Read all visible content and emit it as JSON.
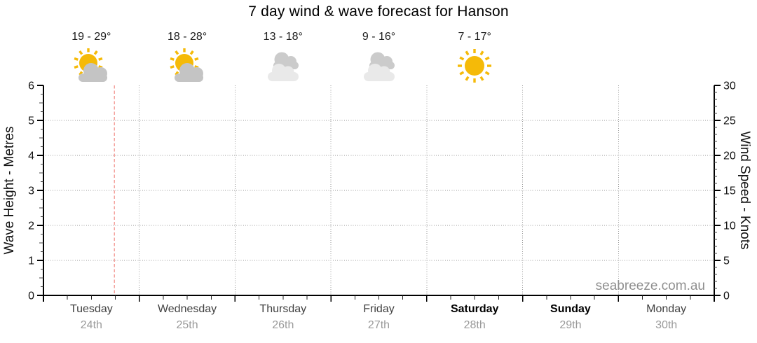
{
  "title": "7 day wind & wave forecast for Hanson",
  "watermark": "seabreeze.com.au",
  "axes": {
    "left": {
      "label": "Wave Height - Metres",
      "ticks": [
        "0",
        "1",
        "2",
        "3",
        "4",
        "5",
        "6"
      ]
    },
    "right": {
      "label": "Wind Speed - Knots",
      "ticks": [
        "0",
        "5",
        "10",
        "15",
        "20",
        "25",
        "30"
      ]
    }
  },
  "days": [
    {
      "name": "Tuesday",
      "date": "24th",
      "temp": "19 - 29°",
      "icon": "sun-cloud",
      "weekend": false
    },
    {
      "name": "Wednesday",
      "date": "25th",
      "temp": "18 - 28°",
      "icon": "sun-cloud",
      "weekend": false
    },
    {
      "name": "Thursday",
      "date": "26th",
      "temp": "13 - 18°",
      "icon": "clouds",
      "weekend": false
    },
    {
      "name": "Friday",
      "date": "27th",
      "temp": "9 - 16°",
      "icon": "clouds",
      "weekend": false
    },
    {
      "name": "Saturday",
      "date": "28th",
      "temp": "7 - 17°",
      "icon": "sun",
      "weekend": true
    },
    {
      "name": "Sunday",
      "date": "29th",
      "temp": null,
      "icon": null,
      "weekend": true
    },
    {
      "name": "Monday",
      "date": "30th",
      "temp": null,
      "icon": null,
      "weekend": false
    }
  ],
  "colors": {
    "sun": "#f5ba08",
    "cloud_mid": "#c4c4c4",
    "cloud_dark": "#cbcbcb",
    "cloud_light": "#e9e9e9",
    "grid": "#999999",
    "axis": "#000000",
    "now_line": "#f4a29d",
    "temp_label": "#1c1c1c",
    "day_label": "#414141",
    "weekend_label": "#000000",
    "date_label": "#9a9a9a",
    "watermark": "#8f8f8f"
  },
  "chart_data": {
    "type": "line",
    "title": "7 day wind & wave forecast for Hanson",
    "x_categories": [
      "Tuesday 24th",
      "Wednesday 25th",
      "Thursday 26th",
      "Friday 27th",
      "Saturday 28th",
      "Sunday 29th",
      "Monday 30th"
    ],
    "y_left_axis": {
      "label": "Wave Height - Metres",
      "range": [
        0,
        6
      ],
      "major_ticks": [
        0,
        1,
        2,
        3,
        4,
        5,
        6
      ],
      "minor_tick_step": 0.25
    },
    "y_right_axis": {
      "label": "Wind Speed - Knots",
      "range": [
        0,
        30
      ],
      "major_ticks": [
        0,
        5,
        10,
        15,
        20,
        25,
        30
      ],
      "minor_tick_step": 1
    },
    "x_minor_ticks_per_day": 4,
    "series": [],
    "note": "Plot area is empty - no wave or wind series drawn; only gridlines and a current-time marker",
    "now_marker": {
      "day": "Tuesday",
      "fraction_of_day": 0.74
    },
    "grid": true,
    "legend": false,
    "day_annotations": [
      {
        "day": "Tuesday",
        "date": "24th",
        "temp_range": "19 - 29°",
        "temp_min": 19,
        "temp_max": 29,
        "icon": "sun-cloud"
      },
      {
        "day": "Wednesday",
        "date": "25th",
        "temp_range": "18 - 28°",
        "temp_min": 18,
        "temp_max": 28,
        "icon": "sun-cloud"
      },
      {
        "day": "Thursday",
        "date": "26th",
        "temp_range": "13 - 18°",
        "temp_min": 13,
        "temp_max": 18,
        "icon": "clouds"
      },
      {
        "day": "Friday",
        "date": "27th",
        "temp_range": "9 - 16°",
        "temp_min": 9,
        "temp_max": 16,
        "icon": "clouds"
      },
      {
        "day": "Saturday",
        "date": "28th",
        "temp_range": "7 - 17°",
        "temp_min": 7,
        "temp_max": 17,
        "icon": "sun"
      }
    ]
  }
}
